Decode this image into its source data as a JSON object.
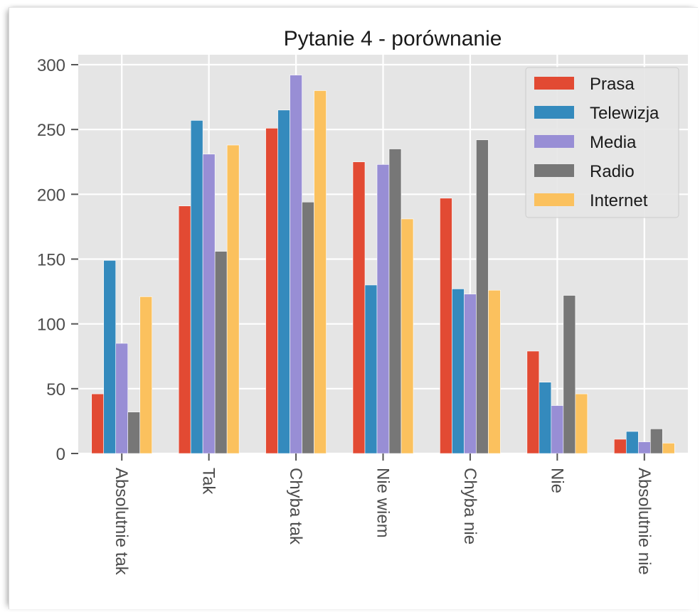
{
  "chart_data": {
    "type": "bar",
    "title": "Pytanie 4 - porównanie",
    "xlabel": "",
    "ylabel": "",
    "categories": [
      "Absolutnie tak",
      "Tak",
      "Chyba tak",
      "Nie wiem",
      "Chyba nie",
      "Nie",
      "Absolutnie nie"
    ],
    "ylim": [
      0,
      300
    ],
    "yticks": [
      0,
      50,
      100,
      150,
      200,
      250,
      300
    ],
    "grid": true,
    "legend_position": "top-right",
    "series": [
      {
        "name": "Prasa",
        "color": "#E24A33",
        "values": [
          46,
          191,
          251,
          225,
          197,
          79,
          11
        ]
      },
      {
        "name": "Telewizja",
        "color": "#348ABD",
        "values": [
          149,
          257,
          265,
          130,
          127,
          55,
          17
        ]
      },
      {
        "name": "Media",
        "color": "#988ED5",
        "values": [
          85,
          231,
          292,
          223,
          123,
          37,
          9
        ]
      },
      {
        "name": "Radio",
        "color": "#777777",
        "values": [
          32,
          156,
          194,
          235,
          242,
          122,
          19
        ]
      },
      {
        "name": "Internet",
        "color": "#FBC15E",
        "values": [
          121,
          238,
          280,
          181,
          126,
          46,
          8
        ]
      }
    ]
  }
}
